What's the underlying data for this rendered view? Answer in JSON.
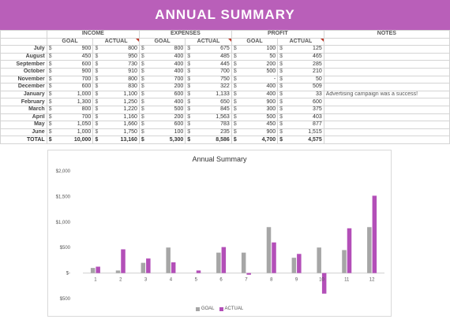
{
  "title": "ANNUAL SUMMARY",
  "groups": {
    "income": "INCOME",
    "expenses": "EXPENSES",
    "profit": "PROFIT",
    "notes": "NOTES"
  },
  "subheaders": {
    "goal": "GOAL",
    "actual": "ACTUAL"
  },
  "currency": "$",
  "rows": [
    {
      "month": "July",
      "income_goal": "900",
      "income_actual": "800",
      "exp_goal": "800",
      "exp_actual": "675",
      "profit_goal": "100",
      "profit_actual": "125",
      "note": ""
    },
    {
      "month": "August",
      "income_goal": "450",
      "income_actual": "950",
      "exp_goal": "400",
      "exp_actual": "485",
      "profit_goal": "50",
      "profit_actual": "465",
      "note": ""
    },
    {
      "month": "September",
      "income_goal": "600",
      "income_actual": "730",
      "exp_goal": "400",
      "exp_actual": "445",
      "profit_goal": "200",
      "profit_actual": "285",
      "note": ""
    },
    {
      "month": "October",
      "income_goal": "900",
      "income_actual": "910",
      "exp_goal": "400",
      "exp_actual": "700",
      "profit_goal": "500",
      "profit_actual": "210",
      "note": ""
    },
    {
      "month": "November",
      "income_goal": "700",
      "income_actual": "800",
      "exp_goal": "700",
      "exp_actual": "750",
      "profit_goal": "-",
      "profit_actual": "50",
      "note": ""
    },
    {
      "month": "December",
      "income_goal": "600",
      "income_actual": "830",
      "exp_goal": "200",
      "exp_actual": "322",
      "profit_goal": "400",
      "profit_actual": "509",
      "note": ""
    },
    {
      "month": "January",
      "income_goal": "1,000",
      "income_actual": "1,100",
      "exp_goal": "600",
      "exp_actual": "1,133",
      "profit_goal": "400",
      "profit_actual": "33",
      "note": "Advertising campaign was a success!"
    },
    {
      "month": "February",
      "income_goal": "1,300",
      "income_actual": "1,250",
      "exp_goal": "400",
      "exp_actual": "650",
      "profit_goal": "900",
      "profit_actual": "600",
      "note": ""
    },
    {
      "month": "March",
      "income_goal": "800",
      "income_actual": "1,220",
      "exp_goal": "500",
      "exp_actual": "845",
      "profit_goal": "300",
      "profit_actual": "375",
      "note": ""
    },
    {
      "month": "April",
      "income_goal": "700",
      "income_actual": "1,160",
      "exp_goal": "200",
      "exp_actual": "1,563",
      "profit_goal": "500",
      "profit_actual": "403",
      "note": ""
    },
    {
      "month": "May",
      "income_goal": "1,050",
      "income_actual": "1,660",
      "exp_goal": "600",
      "exp_actual": "783",
      "profit_goal": "450",
      "profit_actual": "877",
      "note": ""
    },
    {
      "month": "June",
      "income_goal": "1,000",
      "income_actual": "1,750",
      "exp_goal": "100",
      "exp_actual": "235",
      "profit_goal": "900",
      "profit_actual": "1,515",
      "note": ""
    }
  ],
  "total": {
    "label": "TOTAL",
    "income_goal": "10,000",
    "income_actual": "13,160",
    "exp_goal": "5,300",
    "exp_actual": "8,586",
    "profit_goal": "4,700",
    "profit_actual": "4,575"
  },
  "colors": {
    "banner": "#b95fb9",
    "goal": "#a6a6a6",
    "actual": "#b34fb8"
  },
  "chart_data": {
    "type": "bar",
    "title": "Annual Summary",
    "categories": [
      "1",
      "2",
      "3",
      "4",
      "5",
      "6",
      "7",
      "8",
      "9",
      "10",
      "11",
      "12"
    ],
    "series": [
      {
        "name": "GOAL",
        "values": [
          100,
          50,
          200,
          500,
          0,
          400,
          400,
          900,
          300,
          500,
          450,
          900
        ]
      },
      {
        "name": "ACTUAL",
        "values": [
          125,
          465,
          285,
          210,
          50,
          509,
          -33,
          600,
          375,
          -403,
          877,
          1515
        ]
      }
    ],
    "ylim": [
      -500,
      2000
    ],
    "yticks": [
      -500,
      0,
      500,
      1000,
      1500,
      2000
    ],
    "ytick_labels": [
      "$500",
      "$-",
      "$500",
      "$1,000",
      "$1,500",
      "$2,000"
    ],
    "legend": "bottom",
    "grid": false
  }
}
